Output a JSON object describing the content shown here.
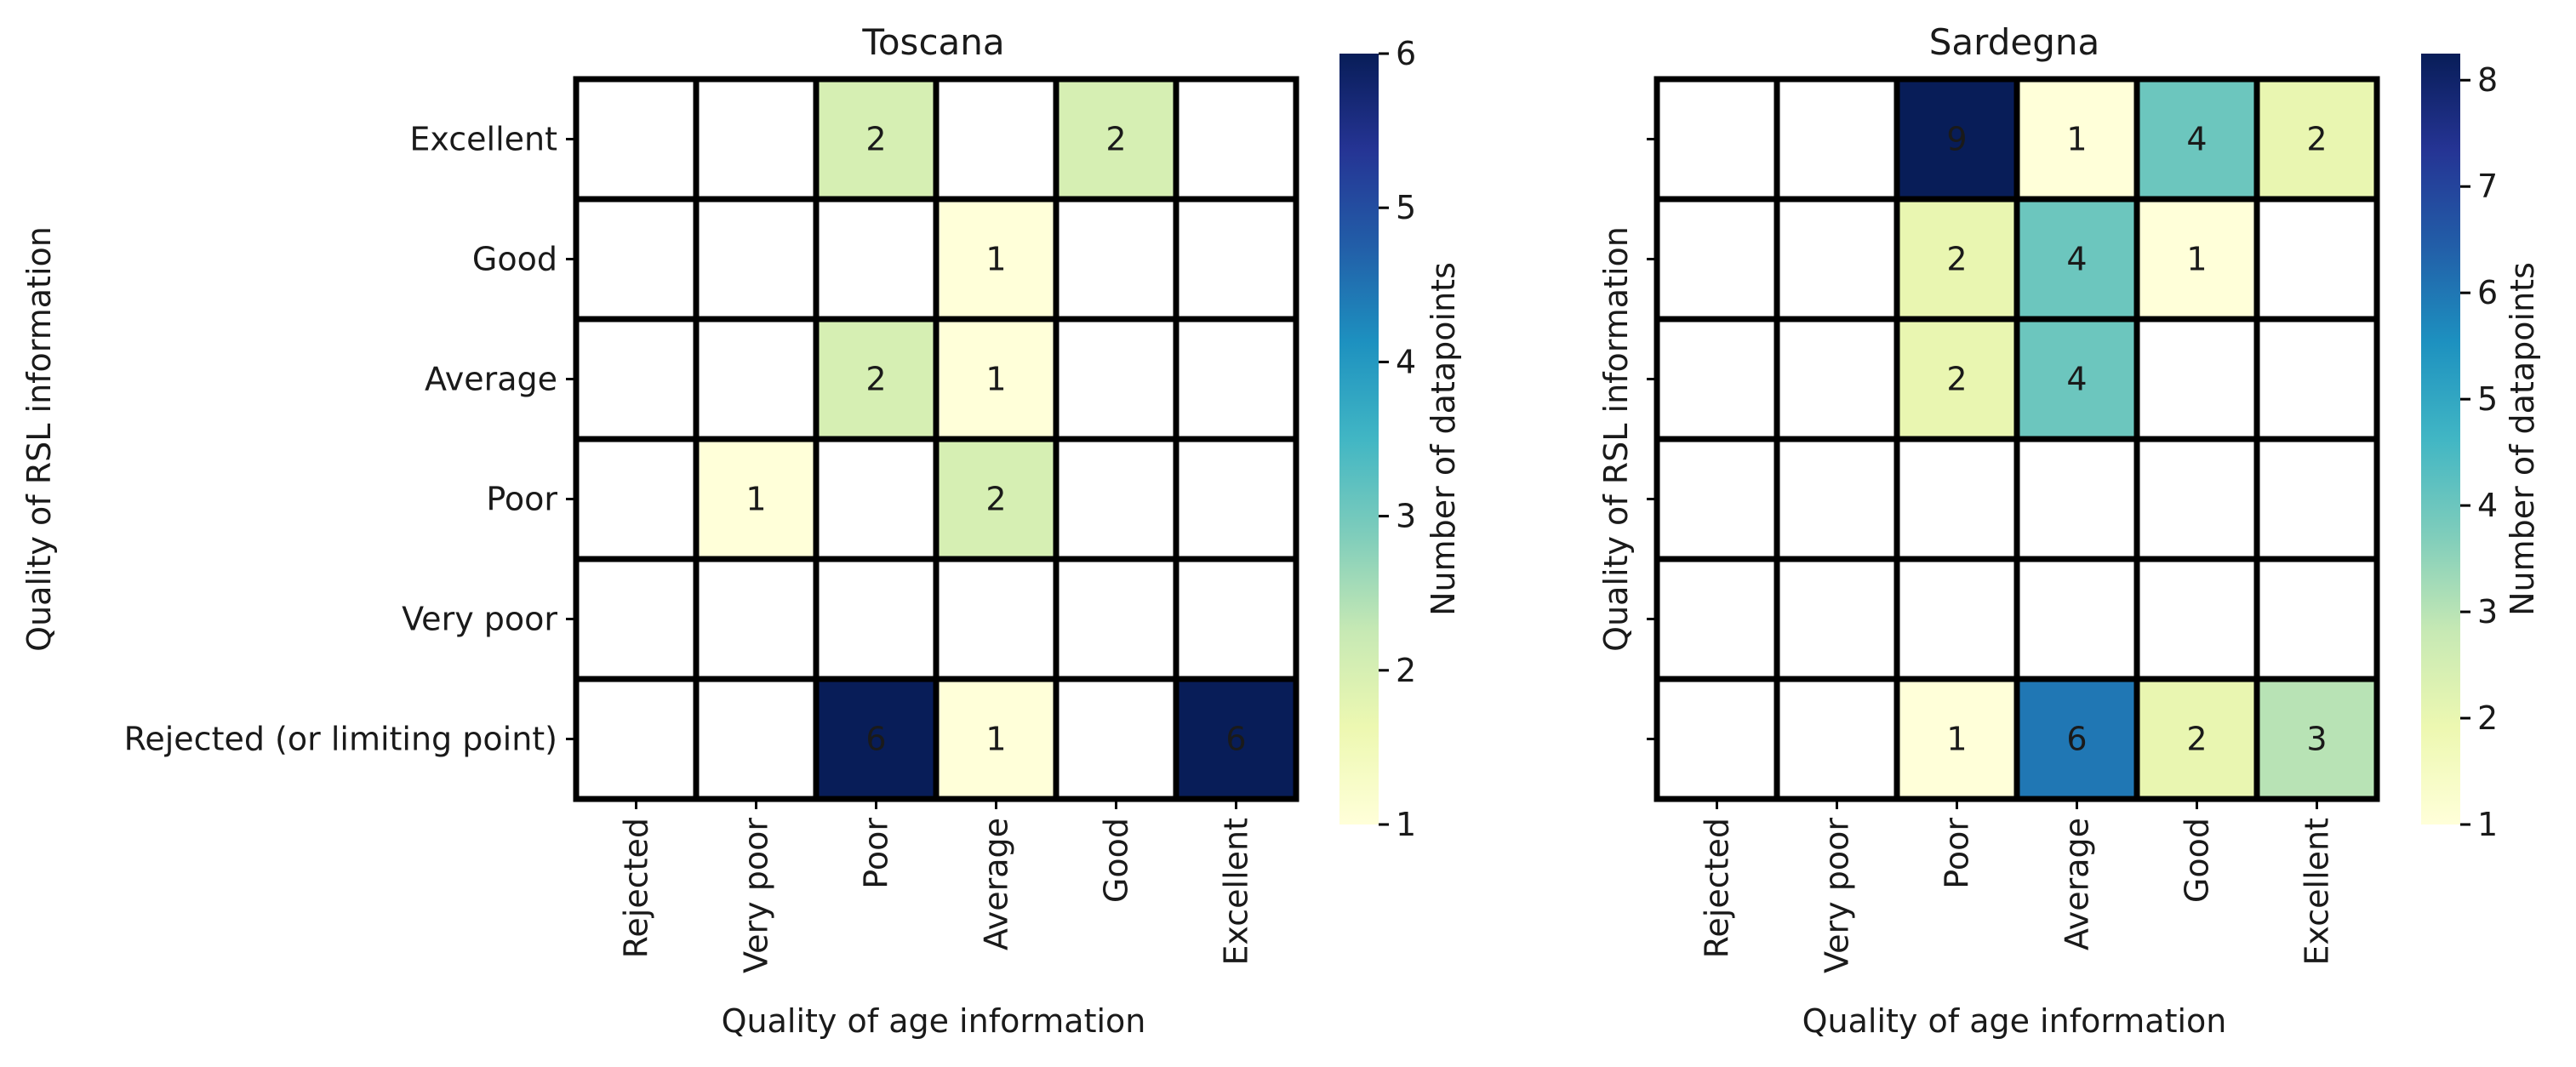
{
  "figure": {
    "background": "#ffffff"
  },
  "chart_data": [
    {
      "type": "heatmap",
      "title": "Toscana",
      "xlabel": "Quality of age information",
      "ylabel": "Quality of RSL information",
      "colorbar_label": "Number of datapoints",
      "colormap": "YlGnBu",
      "vmin": 1,
      "vmax": 6,
      "colorbar_ticks": [
        1,
        2,
        3,
        4,
        5,
        6
      ],
      "x_categories": [
        "Rejected",
        "Very poor",
        "Poor",
        "Average",
        "Good",
        "Excellent"
      ],
      "y_categories": [
        "Excellent",
        "Good",
        "Average",
        "Poor",
        "Very poor",
        "Rejected (or limiting point)"
      ],
      "show_y_ticklabels": true,
      "values": [
        [
          null,
          null,
          2,
          null,
          2,
          null
        ],
        [
          null,
          null,
          null,
          1,
          null,
          null
        ],
        [
          null,
          null,
          2,
          1,
          null,
          null
        ],
        [
          null,
          1,
          null,
          2,
          null,
          null
        ],
        [
          null,
          null,
          null,
          null,
          null,
          null
        ],
        [
          null,
          null,
          6,
          1,
          null,
          6
        ]
      ]
    },
    {
      "type": "heatmap",
      "title": "Sardegna",
      "xlabel": "Quality of age information",
      "ylabel": "Quality of RSL information",
      "colorbar_label": "Number of datapoints",
      "colormap": "YlGnBu",
      "vmin": 1,
      "vmax": 8.25,
      "colorbar_ticks": [
        1,
        2,
        3,
        4,
        5,
        6,
        7,
        8
      ],
      "x_categories": [
        "Rejected",
        "Very poor",
        "Poor",
        "Average",
        "Good",
        "Excellent"
      ],
      "y_categories": [
        "Excellent",
        "Good",
        "Average",
        "Poor",
        "Very poor",
        "Rejected (or limiting point)"
      ],
      "show_y_ticklabels": false,
      "values": [
        [
          null,
          null,
          9,
          1,
          4,
          2
        ],
        [
          null,
          null,
          2,
          4,
          1,
          null
        ],
        [
          null,
          null,
          2,
          4,
          null,
          null
        ],
        [
          null,
          null,
          null,
          null,
          null,
          null
        ],
        [
          null,
          null,
          null,
          null,
          null,
          null
        ],
        [
          null,
          null,
          1,
          6,
          2,
          3
        ]
      ]
    }
  ]
}
